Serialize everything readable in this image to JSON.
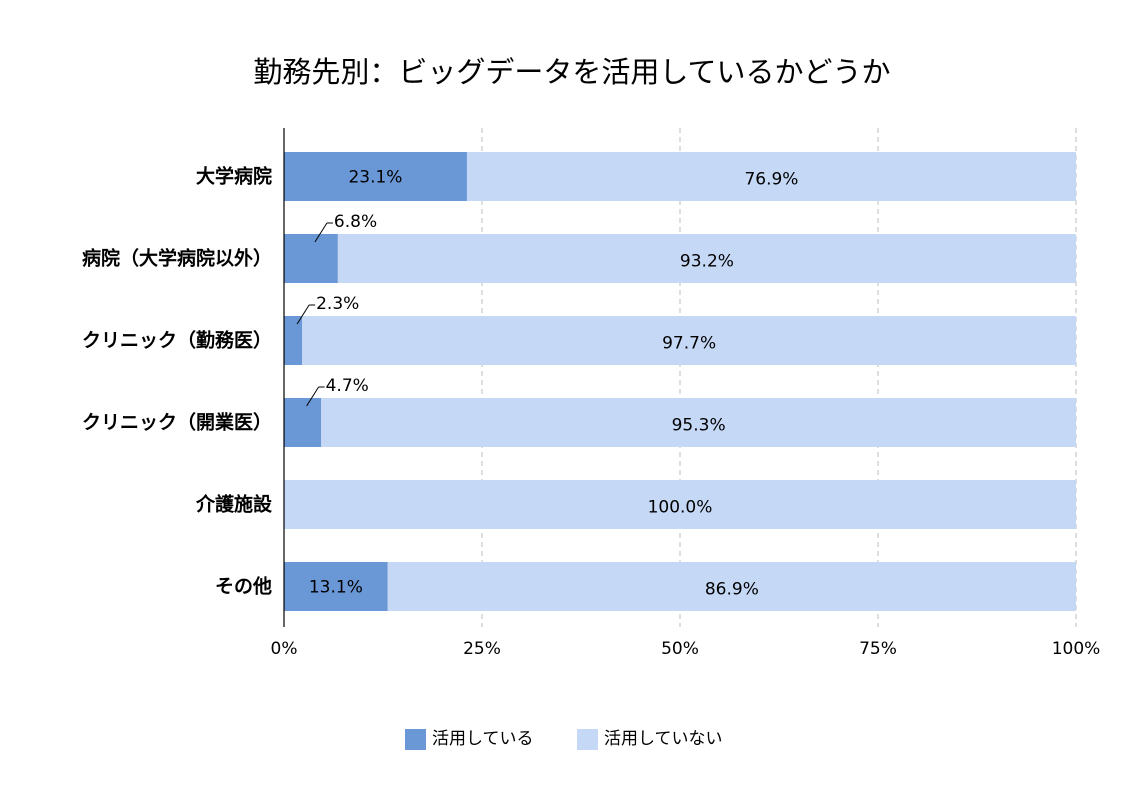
{
  "chart_data": {
    "type": "bar",
    "orientation": "horizontal",
    "stacked": true,
    "percent_stacked": true,
    "title": "勤務先別：ビッグデータを活用しているかどうか",
    "categories": [
      "大学病院",
      "病院（大学病院以外）",
      "クリニック（勤務医）",
      "クリニック（開業医）",
      "介護施設",
      "その他"
    ],
    "series": [
      {
        "name": "活用している",
        "color": "#6a97d5",
        "values": [
          23.1,
          6.8,
          2.3,
          4.7,
          0.0,
          13.1
        ],
        "labels": [
          "23.1%",
          "6.8%",
          "2.3%",
          "4.7%",
          "",
          "13.1%"
        ]
      },
      {
        "name": "活用していない",
        "color": "#c5d8f6",
        "values": [
          76.9,
          93.2,
          97.7,
          95.3,
          100.0,
          86.9
        ],
        "labels": [
          "76.9%",
          "93.2%",
          "97.7%",
          "95.3%",
          "100.0%",
          "86.9%"
        ]
      }
    ],
    "xlim": [
      0,
      100
    ],
    "xticks": [
      0,
      25,
      50,
      75,
      100
    ],
    "xtick_labels": [
      "0%",
      "25%",
      "50%",
      "75%",
      "100%"
    ],
    "grid": "vertical dashed",
    "legend_position": "bottom"
  }
}
